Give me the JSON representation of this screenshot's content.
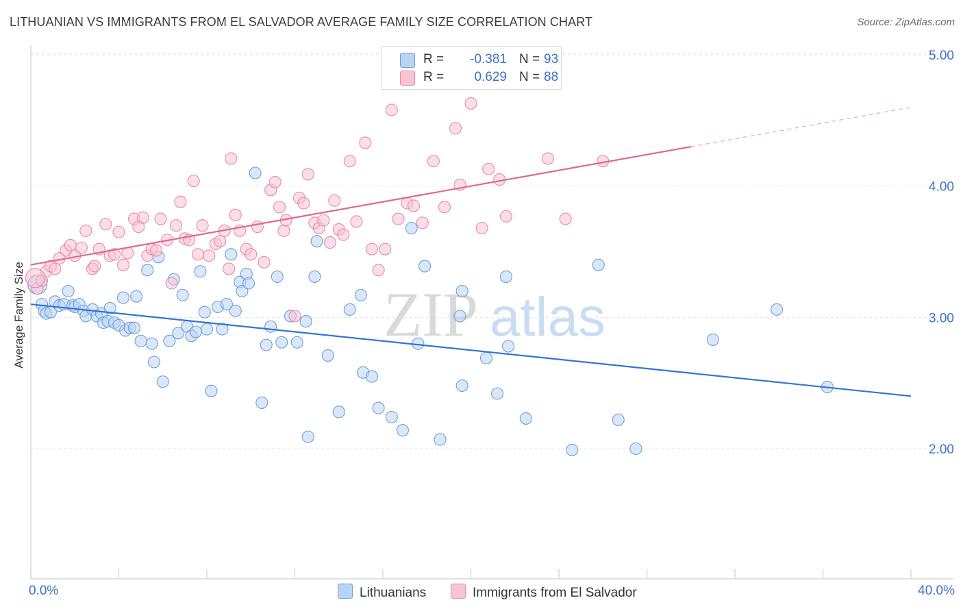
{
  "title": "LITHUANIAN VS IMMIGRANTS FROM EL SALVADOR AVERAGE FAMILY SIZE CORRELATION CHART",
  "source": "Source: ZipAtlas.com",
  "watermark": {
    "zip": "ZIP",
    "atlas": "atlas"
  },
  "legend": {
    "r_label": "R =",
    "n_label": "N =",
    "lithuanians": {
      "r": "-0.381",
      "n": "93"
    },
    "salvador": {
      "r": "0.629",
      "n": "88"
    }
  },
  "bottom_legend": {
    "lithuanians": "Lithuanians",
    "salvador": "Immigrants from El Salvador"
  },
  "colors": {
    "blue_fill": "#b9d3f2",
    "blue_edge": "#6f9fd9",
    "blue_line": "#3375d1",
    "pink_fill": "#f8c3d3",
    "pink_edge": "#e88aa6",
    "pink_line": "#e06792",
    "axis_text": "#3a72c8",
    "grid": "#e3e3e3"
  },
  "chart_data": {
    "type": "scatter",
    "title": "LITHUANIAN VS IMMIGRANTS FROM EL SALVADOR AVERAGE FAMILY SIZE CORRELATION CHART",
    "xlabel": "",
    "ylabel": "Average Family Size",
    "xlim": [
      0,
      40
    ],
    "ylim": [
      1.0,
      5.1
    ],
    "x_tick_labels": {
      "left": "0.0%",
      "right": "40.0%"
    },
    "y_ticks": [
      {
        "value": 2.0,
        "label": "2.00"
      },
      {
        "value": 3.0,
        "label": "3.00"
      },
      {
        "value": 4.0,
        "label": "4.00"
      },
      {
        "value": 5.0,
        "label": "5.00"
      }
    ],
    "series": [
      {
        "name": "Lithuanians",
        "color": "#6f9fd9",
        "trend": {
          "x0": 0,
          "y0": 3.1,
          "x1": 40,
          "y1": 2.4
        },
        "points": [
          [
            0.5,
            3.1
          ],
          [
            0.6,
            3.05
          ],
          [
            0.7,
            3.03
          ],
          [
            0.9,
            3.04
          ],
          [
            1.1,
            3.12
          ],
          [
            1.3,
            3.09
          ],
          [
            1.5,
            3.1
          ],
          [
            1.7,
            3.2
          ],
          [
            1.9,
            3.09
          ],
          [
            2.0,
            3.08
          ],
          [
            2.2,
            3.1
          ],
          [
            2.4,
            3.05
          ],
          [
            2.5,
            3.01
          ],
          [
            2.8,
            3.06
          ],
          [
            3.0,
            3.01
          ],
          [
            3.2,
            3.03
          ],
          [
            3.3,
            2.96
          ],
          [
            3.5,
            2.97
          ],
          [
            3.6,
            3.07
          ],
          [
            3.8,
            2.96
          ],
          [
            4.0,
            2.94
          ],
          [
            4.2,
            3.15
          ],
          [
            4.3,
            2.9
          ],
          [
            4.5,
            2.92
          ],
          [
            4.7,
            2.92
          ],
          [
            4.8,
            3.16
          ],
          [
            5.0,
            2.82
          ],
          [
            5.3,
            3.36
          ],
          [
            5.5,
            2.8
          ],
          [
            5.6,
            2.66
          ],
          [
            5.8,
            3.46
          ],
          [
            6.0,
            2.51
          ],
          [
            6.3,
            2.82
          ],
          [
            6.5,
            3.29
          ],
          [
            6.7,
            2.88
          ],
          [
            6.9,
            3.17
          ],
          [
            7.1,
            2.93
          ],
          [
            7.3,
            2.86
          ],
          [
            7.5,
            2.89
          ],
          [
            7.7,
            3.35
          ],
          [
            7.9,
            3.04
          ],
          [
            8.0,
            2.91
          ],
          [
            8.2,
            2.44
          ],
          [
            8.5,
            3.08
          ],
          [
            8.7,
            2.91
          ],
          [
            8.9,
            3.1
          ],
          [
            9.1,
            3.48
          ],
          [
            9.3,
            3.05
          ],
          [
            9.5,
            3.27
          ],
          [
            9.6,
            3.2
          ],
          [
            9.8,
            3.33
          ],
          [
            9.9,
            3.26
          ],
          [
            10.2,
            4.1
          ],
          [
            10.5,
            2.35
          ],
          [
            10.7,
            2.79
          ],
          [
            10.9,
            2.93
          ],
          [
            11.2,
            3.31
          ],
          [
            11.4,
            2.81
          ],
          [
            11.8,
            3.01
          ],
          [
            12.1,
            2.81
          ],
          [
            12.5,
            2.97
          ],
          [
            12.6,
            2.09
          ],
          [
            12.9,
            3.31
          ],
          [
            13.0,
            3.58
          ],
          [
            13.5,
            2.71
          ],
          [
            14.0,
            2.28
          ],
          [
            14.5,
            3.06
          ],
          [
            15.0,
            3.17
          ],
          [
            15.1,
            2.58
          ],
          [
            15.5,
            2.55
          ],
          [
            15.8,
            2.31
          ],
          [
            16.4,
            2.24
          ],
          [
            16.9,
            2.14
          ],
          [
            17.3,
            3.68
          ],
          [
            17.6,
            2.8
          ],
          [
            17.9,
            3.39
          ],
          [
            18.6,
            2.07
          ],
          [
            19.5,
            3.01
          ],
          [
            19.6,
            2.48
          ],
          [
            20.7,
            2.69
          ],
          [
            21.2,
            2.42
          ],
          [
            21.6,
            3.31
          ],
          [
            21.7,
            2.78
          ],
          [
            22.5,
            2.23
          ],
          [
            24.6,
            1.99
          ],
          [
            25.8,
            3.4
          ],
          [
            26.7,
            2.22
          ],
          [
            27.5,
            2.0
          ],
          [
            31.0,
            2.83
          ],
          [
            33.9,
            3.06
          ],
          [
            36.2,
            2.47
          ],
          [
            0.3,
            3.25
          ],
          [
            19.6,
            3.2
          ]
        ]
      },
      {
        "name": "Immigrants from El Salvador",
        "color": "#e88aa6",
        "trend": {
          "x0": 0,
          "y0": 3.4,
          "x1": 30,
          "y1": 4.3,
          "dash_to_x": 40,
          "dash_to_y": 4.6
        },
        "points": [
          [
            0.3,
            3.22
          ],
          [
            0.5,
            3.28
          ],
          [
            0.7,
            3.35
          ],
          [
            0.9,
            3.39
          ],
          [
            1.1,
            3.37
          ],
          [
            1.3,
            3.45
          ],
          [
            1.6,
            3.51
          ],
          [
            1.8,
            3.55
          ],
          [
            2.0,
            3.47
          ],
          [
            2.3,
            3.53
          ],
          [
            2.5,
            3.66
          ],
          [
            2.8,
            3.37
          ],
          [
            2.9,
            3.39
          ],
          [
            3.1,
            3.52
          ],
          [
            3.4,
            3.71
          ],
          [
            3.6,
            3.47
          ],
          [
            3.8,
            3.48
          ],
          [
            4.0,
            3.65
          ],
          [
            4.2,
            3.4
          ],
          [
            4.4,
            3.49
          ],
          [
            4.7,
            3.75
          ],
          [
            4.9,
            3.69
          ],
          [
            5.1,
            3.76
          ],
          [
            5.3,
            3.47
          ],
          [
            5.5,
            3.52
          ],
          [
            5.7,
            3.51
          ],
          [
            5.9,
            3.75
          ],
          [
            6.2,
            3.59
          ],
          [
            6.4,
            3.26
          ],
          [
            6.6,
            3.7
          ],
          [
            6.8,
            3.88
          ],
          [
            7.0,
            3.6
          ],
          [
            7.2,
            3.59
          ],
          [
            7.4,
            4.04
          ],
          [
            7.6,
            3.48
          ],
          [
            7.8,
            3.7
          ],
          [
            8.1,
            3.47
          ],
          [
            8.4,
            3.56
          ],
          [
            8.6,
            3.58
          ],
          [
            8.8,
            3.66
          ],
          [
            9.1,
            4.21
          ],
          [
            9.3,
            3.78
          ],
          [
            9.5,
            3.66
          ],
          [
            9.8,
            3.52
          ],
          [
            10.0,
            3.48
          ],
          [
            10.3,
            3.69
          ],
          [
            10.6,
            3.42
          ],
          [
            10.9,
            3.97
          ],
          [
            11.1,
            4.03
          ],
          [
            11.3,
            3.84
          ],
          [
            11.5,
            3.66
          ],
          [
            11.6,
            3.74
          ],
          [
            12.0,
            3.01
          ],
          [
            12.2,
            3.91
          ],
          [
            12.4,
            3.87
          ],
          [
            12.6,
            4.09
          ],
          [
            12.9,
            3.72
          ],
          [
            13.1,
            3.68
          ],
          [
            13.3,
            3.74
          ],
          [
            13.6,
            3.57
          ],
          [
            13.8,
            3.89
          ],
          [
            14.0,
            3.67
          ],
          [
            14.2,
            3.63
          ],
          [
            14.5,
            4.19
          ],
          [
            14.8,
            3.73
          ],
          [
            15.2,
            4.33
          ],
          [
            15.5,
            3.52
          ],
          [
            15.8,
            3.36
          ],
          [
            16.1,
            3.52
          ],
          [
            16.4,
            4.58
          ],
          [
            16.7,
            3.75
          ],
          [
            17.1,
            3.87
          ],
          [
            17.4,
            3.85
          ],
          [
            17.8,
            3.72
          ],
          [
            18.3,
            4.19
          ],
          [
            18.8,
            3.84
          ],
          [
            19.3,
            4.44
          ],
          [
            19.5,
            4.01
          ],
          [
            20.0,
            4.63
          ],
          [
            20.5,
            3.68
          ],
          [
            20.8,
            4.13
          ],
          [
            21.3,
            4.05
          ],
          [
            21.6,
            3.77
          ],
          [
            23.5,
            4.21
          ],
          [
            24.3,
            3.75
          ],
          [
            26.0,
            4.19
          ],
          [
            0.2,
            3.3
          ],
          [
            9.0,
            3.37
          ]
        ]
      }
    ]
  }
}
